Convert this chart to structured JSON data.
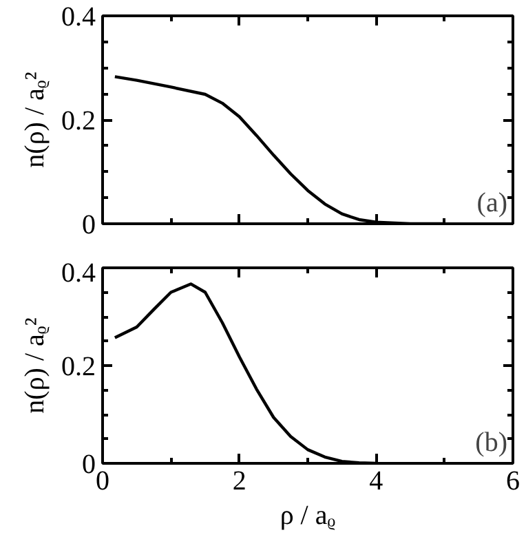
{
  "chart_data": [
    {
      "type": "line",
      "ylabel": "n(ρ) / aᵨ²",
      "annotations": [
        "(a)"
      ],
      "xlim": [
        0,
        6
      ],
      "xticks": [
        0,
        2,
        4,
        6
      ],
      "ylim": [
        0,
        0.4
      ],
      "yticks": [
        0,
        0.2,
        0.4
      ],
      "tick_labels": "y",
      "grid": false,
      "x": [
        0.18,
        0.5,
        1.0,
        1.5,
        1.75,
        2.0,
        2.25,
        2.5,
        2.75,
        3.0,
        3.25,
        3.5,
        3.75,
        4.0,
        4.5,
        5.0
      ],
      "series": [
        {
          "color": "#000000",
          "values": [
            0.283,
            0.276,
            0.263,
            0.249,
            0.232,
            0.206,
            0.17,
            0.132,
            0.096,
            0.064,
            0.038,
            0.019,
            0.008,
            0.003,
            0.0,
            0.0
          ]
        }
      ]
    },
    {
      "type": "line",
      "xlabel": "ρ / aᵨ",
      "ylabel": "n(ρ) / aᵨ²",
      "annotations": [
        "(b)"
      ],
      "xlim": [
        0,
        6
      ],
      "xticks": [
        0,
        2,
        4,
        6
      ],
      "ylim": [
        0,
        0.4
      ],
      "yticks": [
        0,
        0.2,
        0.4
      ],
      "grid": false,
      "x": [
        0.18,
        0.5,
        0.75,
        1.0,
        1.29,
        1.5,
        1.75,
        2.0,
        2.25,
        2.5,
        2.75,
        3.0,
        3.25,
        3.5,
        3.75,
        4.0
      ],
      "series": [
        {
          "color": "#000000",
          "values": [
            0.257,
            0.279,
            0.315,
            0.35,
            0.367,
            0.35,
            0.288,
            0.218,
            0.152,
            0.094,
            0.055,
            0.028,
            0.013,
            0.004,
            0.001,
            0.0
          ]
        }
      ]
    }
  ]
}
